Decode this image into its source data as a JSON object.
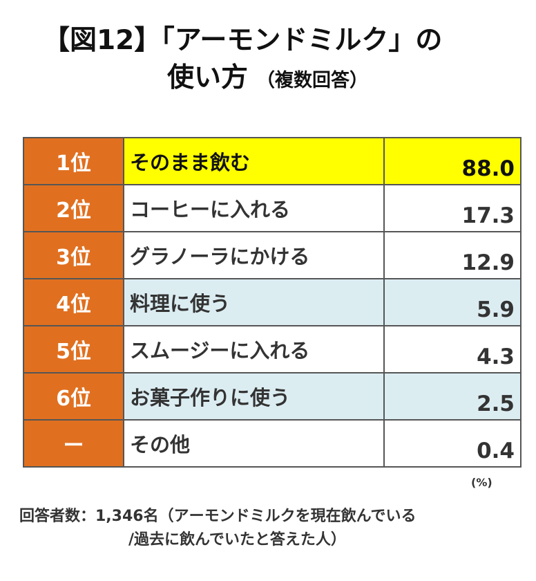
{
  "title": {
    "line1": "【図12】「アーモンドミルク」の",
    "line2": "使い方",
    "sub": "（複数回答）"
  },
  "chart_data": {
    "type": "table",
    "columns": [
      "rank",
      "item",
      "value"
    ],
    "rows": [
      {
        "rank": "1位",
        "item": "そのまま飲む",
        "value": "88.0"
      },
      {
        "rank": "2位",
        "item": "コーヒーに入れる",
        "value": "17.3"
      },
      {
        "rank": "3位",
        "item": "グラノーラにかける",
        "value": "12.9"
      },
      {
        "rank": "4位",
        "item": "料理に使う",
        "value": "5.9"
      },
      {
        "rank": "5位",
        "item": "スムージーに入れる",
        "value": "4.3"
      },
      {
        "rank": "6位",
        "item": "お菓子作りに使う",
        "value": "2.5"
      },
      {
        "rank": "ー",
        "item": "その他",
        "value": "0.4"
      }
    ],
    "unit": "(%)",
    "highlight_colors": {
      "rank_bg": "#e07020",
      "top": "#ffff00",
      "blue": "#dcedf2"
    },
    "row_highlight": [
      "yellow",
      "none",
      "none",
      "blue",
      "none",
      "blue",
      "none"
    ]
  },
  "note": {
    "line1": "回答者数：1,346名（アーモンドミルクを現在飲んでいる",
    "line2": "/過去に飲んでいたと答えた人）"
  }
}
